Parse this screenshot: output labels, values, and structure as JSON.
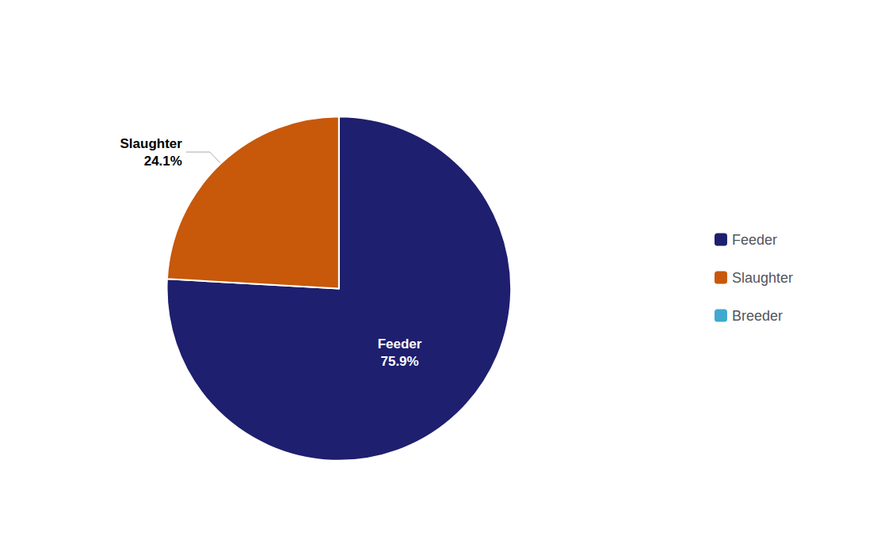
{
  "chart_data": {
    "type": "pie",
    "categories": [
      "Feeder",
      "Slaughter",
      "Breeder"
    ],
    "values": [
      75.9,
      24.1,
      0.0
    ],
    "value_labels": [
      "75.9%",
      "24.1%",
      null
    ],
    "colors": [
      "#1e1f6e",
      "#c8580a",
      "#3fa9d0"
    ],
    "data_labels": true,
    "legend": "right"
  }
}
